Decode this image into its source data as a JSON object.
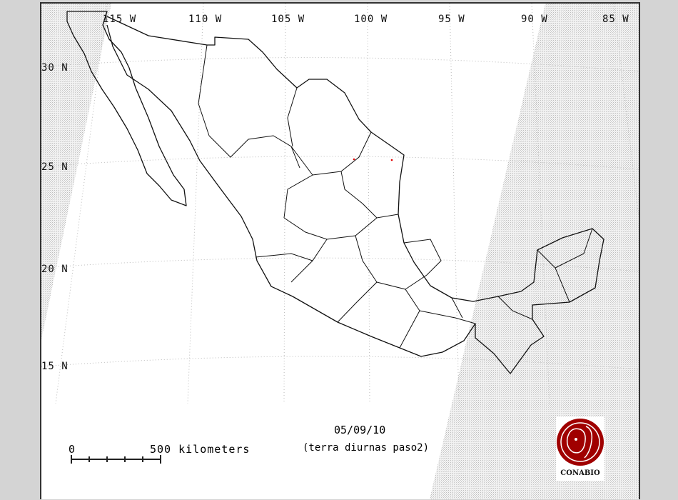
{
  "map": {
    "longitude_labels": [
      "115 W",
      "110 W",
      "105 W",
      "100 W",
      "95 W",
      "90 W",
      "85 W"
    ],
    "latitude_labels": [
      "30 N",
      "25 N",
      "20 N",
      "15 N"
    ],
    "date": "05/09/10",
    "subtitle": "(terra diurnas paso2)",
    "scale": {
      "start_label": "0",
      "end_label": "500 kilometers",
      "divisions": 5
    },
    "logo": {
      "text": "CONABIO",
      "color": "#a00000"
    },
    "hotspot_color": "#e00000",
    "outline_color": "#111111",
    "no_coverage_pattern": "gray-hatch",
    "background_color": "#d4d4d4"
  }
}
